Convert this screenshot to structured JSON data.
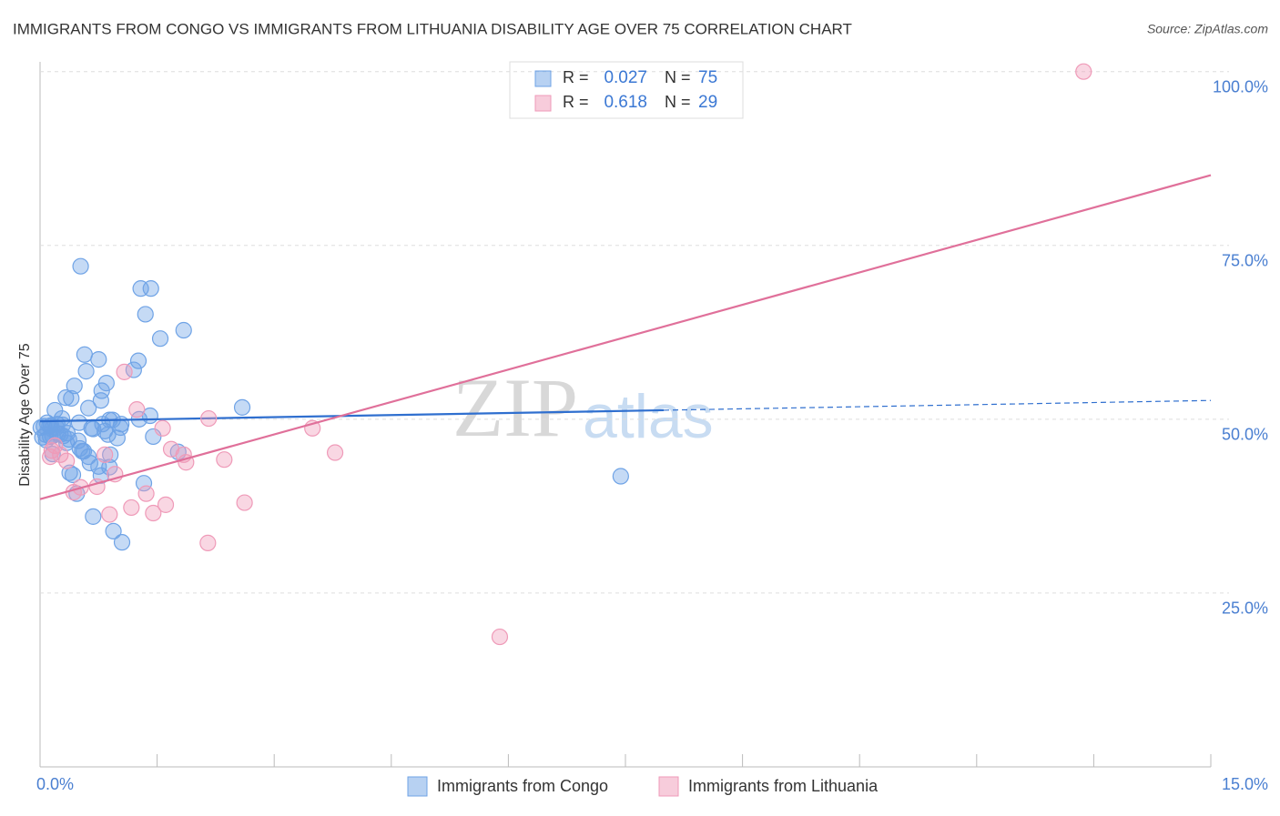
{
  "chart_data": {
    "type": "scatter",
    "title": "IMMIGRANTS FROM CONGO VS IMMIGRANTS FROM LITHUANIA DISABILITY AGE OVER 75 CORRELATION CHART",
    "source": "Source: ZipAtlas.com",
    "ylabel": "Disability Age Over 75",
    "watermark": [
      "ZIP",
      "atlas"
    ],
    "xlim": [
      0,
      15
    ],
    "ylim": [
      0,
      101.4
    ],
    "xticks": [
      0,
      1.5,
      3,
      4.5,
      6,
      7.5,
      9,
      10.5,
      12,
      13.5,
      15
    ],
    "xtick_labels": [
      {
        "value": 0,
        "label": "0.0%"
      },
      {
        "value": 15,
        "label": "15.0%"
      }
    ],
    "yticks": [
      {
        "value": 25,
        "label": "25.0%"
      },
      {
        "value": 50,
        "label": "50.0%"
      },
      {
        "value": 75,
        "label": "75.0%"
      },
      {
        "value": 100,
        "label": "100.0%"
      }
    ],
    "grid": true,
    "r_label": "R =",
    "n_label": "N =",
    "series": [
      {
        "name": "Immigrants from Congo",
        "color": "#6fa3e6",
        "trend_color": "#2f6fcf",
        "r": 0.027,
        "n": 75,
        "trend": [
          49.7,
          52.7
        ],
        "x": [
          0.52,
          1.29,
          1.42,
          1.35,
          1.54,
          1.84,
          0.57,
          0.75,
          1.26,
          0.59,
          1.2,
          0.44,
          0.85,
          0.79,
          0.33,
          0.4,
          0.78,
          0.19,
          0.62,
          2.59,
          1.41,
          0.89,
          0.93,
          1.27,
          1.04,
          1.03,
          0.09,
          0.22,
          0.29,
          0.5,
          0.05,
          0.14,
          0.66,
          0.68,
          0.83,
          0.23,
          0.3,
          0.37,
          0.07,
          0.16,
          0.99,
          1.45,
          0.08,
          0.49,
          0.13,
          0.51,
          0.56,
          1.77,
          0.9,
          0.62,
          0.16,
          0.64,
          0.75,
          0.89,
          0.38,
          0.42,
          0.78,
          1.33,
          0.47,
          0.68,
          0.94,
          1.05,
          7.44,
          0.21,
          0.26,
          0.12,
          0.35,
          0.01,
          0.03,
          0.28,
          0.34,
          0.54,
          0.87,
          0.15,
          0.8
        ],
        "values": [
          72.0,
          68.8,
          68.8,
          65.1,
          61.6,
          62.8,
          59.3,
          58.6,
          58.4,
          56.9,
          57.1,
          54.8,
          55.2,
          54.1,
          53.1,
          53.0,
          52.7,
          51.3,
          51.6,
          51.7,
          50.5,
          49.9,
          49.9,
          50.0,
          49.3,
          48.8,
          49.5,
          49.3,
          49.2,
          49.5,
          49.0,
          49.1,
          48.7,
          48.6,
          48.3,
          47.9,
          47.6,
          47.1,
          47.8,
          47.6,
          47.3,
          47.5,
          47.0,
          46.9,
          47.5,
          45.8,
          45.4,
          45.3,
          44.9,
          44.6,
          45.0,
          43.7,
          43.2,
          43.1,
          42.3,
          42.0,
          41.9,
          40.8,
          39.3,
          36.0,
          33.9,
          32.3,
          41.8,
          48.8,
          47.8,
          49.0,
          48.0,
          48.8,
          47.4,
          50.1,
          46.6,
          45.4,
          47.8,
          48.6,
          49.3
        ]
      },
      {
        "name": "Immigrants from Lithuania",
        "color": "#ef9ab8",
        "trend_color": "#e0709a",
        "r": 0.618,
        "n": 29,
        "trend": [
          38.5,
          85.1
        ],
        "x": [
          13.37,
          1.08,
          1.24,
          2.16,
          1.57,
          3.49,
          1.68,
          1.84,
          2.36,
          3.78,
          0.15,
          0.13,
          0.26,
          0.34,
          0.83,
          0.96,
          1.87,
          0.52,
          0.73,
          0.43,
          1.36,
          1.17,
          1.61,
          2.62,
          1.45,
          0.89,
          2.15,
          5.89,
          0.19
        ],
        "values": [
          100.0,
          56.8,
          51.4,
          50.1,
          48.7,
          48.7,
          45.7,
          44.9,
          44.2,
          45.2,
          45.5,
          44.6,
          44.9,
          44.0,
          44.9,
          42.1,
          43.8,
          40.2,
          40.3,
          39.5,
          39.3,
          37.3,
          37.7,
          38.0,
          36.5,
          36.3,
          32.2,
          18.7,
          46.2
        ]
      }
    ]
  }
}
